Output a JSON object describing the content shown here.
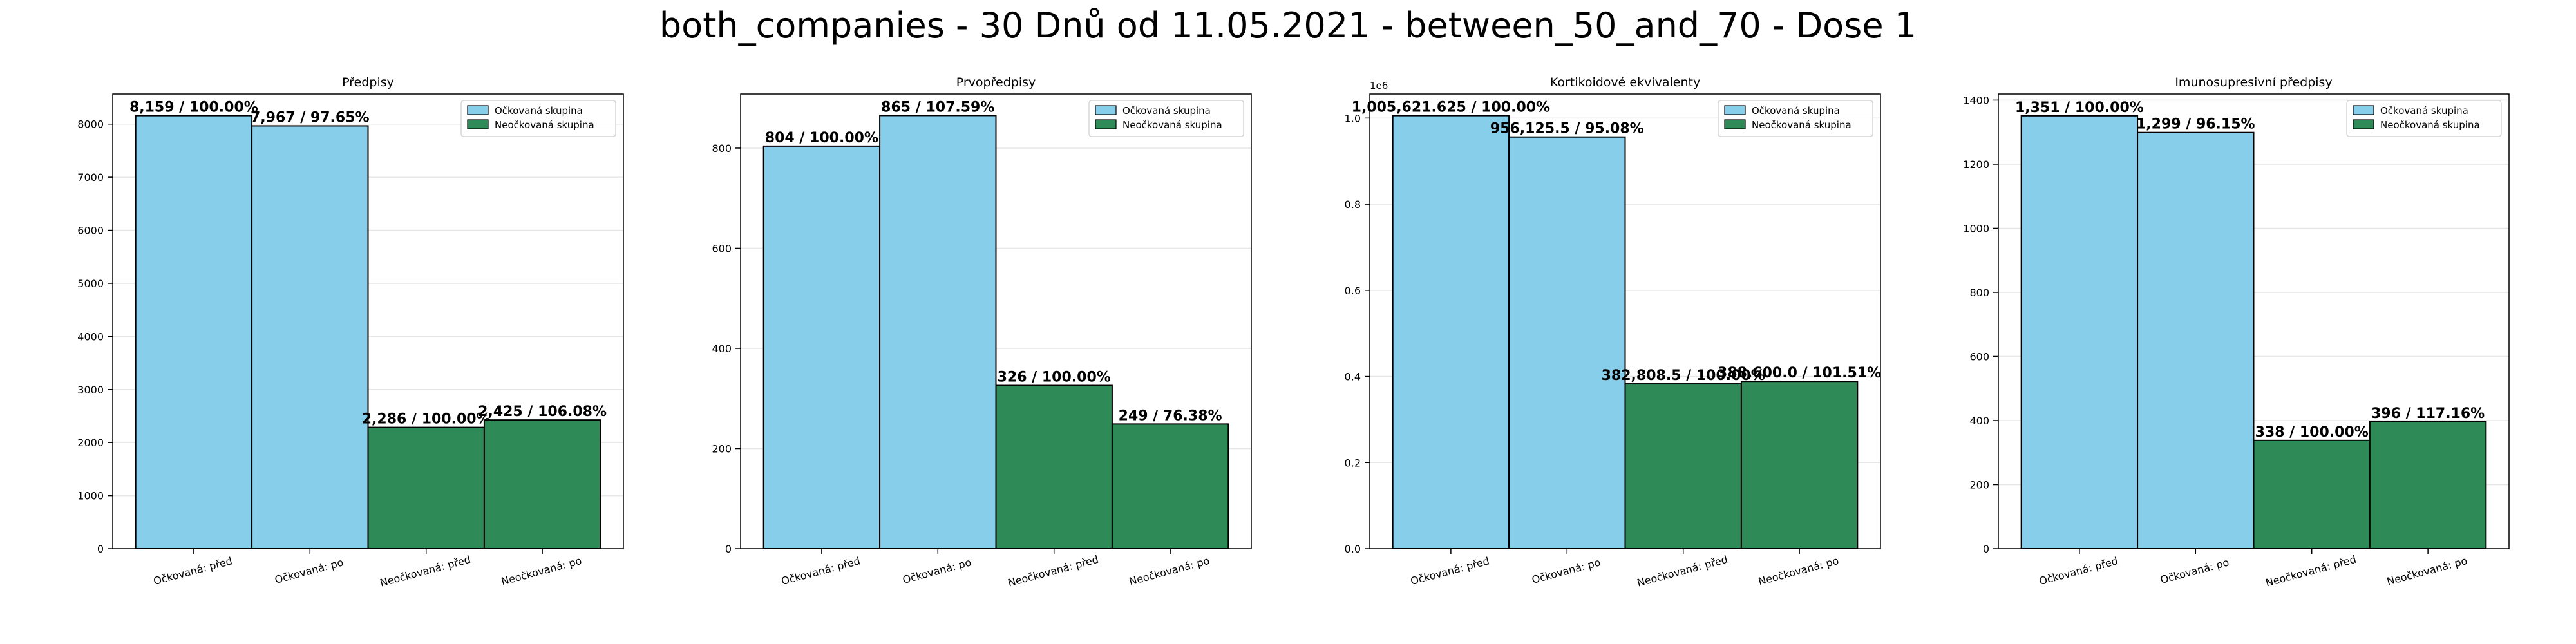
{
  "figure": {
    "suptitle": "both_companies - 30 Dnů od 11.05.2021 - between_50_and_70 - Dose 1"
  },
  "colors": {
    "vaccinated": "#87CEEB",
    "unvaccinated": "#2E8B57",
    "edge": "#000000",
    "grid": "#e6e6e6"
  },
  "chart_data": [
    {
      "type": "bar",
      "title": "Předpisy",
      "categories": [
        "Očkovaná: před",
        "Očkovaná: po",
        "Neočkovaná: před",
        "Neočkovaná: po"
      ],
      "values": [
        8159,
        7967,
        2286,
        2425
      ],
      "bar_labels": [
        "8,159 / 100.00%",
        "7,967 / 97.65%",
        "2,286 / 100.00%",
        "2,425 / 106.08%"
      ],
      "bar_groups": [
        "vaccinated",
        "vaccinated",
        "unvaccinated",
        "unvaccinated"
      ],
      "ylim": [
        0,
        8567
      ],
      "yticks": [
        0,
        1000,
        2000,
        3000,
        4000,
        5000,
        6000,
        7000,
        8000
      ],
      "ytick_labels": [
        "0",
        "1000",
        "2000",
        "3000",
        "4000",
        "5000",
        "6000",
        "7000",
        "8000"
      ],
      "offset_text": "",
      "grid": true,
      "legend": [
        "Očkovaná skupina",
        "Neočkovaná skupina"
      ],
      "legend_position": "top-right"
    },
    {
      "type": "bar",
      "title": "Prvopředpisy",
      "categories": [
        "Očkovaná: před",
        "Očkovaná: po",
        "Neočkovaná: před",
        "Neočkovaná: po"
      ],
      "values": [
        804,
        865,
        326,
        249
      ],
      "bar_labels": [
        "804 / 100.00%",
        "865 / 107.59%",
        "326 / 100.00%",
        "249 / 76.38%"
      ],
      "bar_groups": [
        "vaccinated",
        "vaccinated",
        "unvaccinated",
        "unvaccinated"
      ],
      "ylim": [
        0,
        908
      ],
      "yticks": [
        0,
        200,
        400,
        600,
        800
      ],
      "ytick_labels": [
        "0",
        "200",
        "400",
        "600",
        "800"
      ],
      "offset_text": "",
      "grid": true,
      "legend": [
        "Očkovaná skupina",
        "Neočkovaná skupina"
      ],
      "legend_position": "top-right"
    },
    {
      "type": "bar",
      "title": "Kortikoidové ekvivalenty",
      "categories": [
        "Očkovaná: před",
        "Očkovaná: po",
        "Neočkovaná: před",
        "Neočkovaná: po"
      ],
      "values": [
        1005621.625,
        956125.5,
        382808.5,
        388600.0
      ],
      "bar_labels": [
        "1,005,621.625 / 100.00%",
        "956,125.5 / 95.08%",
        "382,808.5 / 100.00%",
        "388,600.0 / 101.51%"
      ],
      "bar_groups": [
        "vaccinated",
        "vaccinated",
        "unvaccinated",
        "unvaccinated"
      ],
      "ylim": [
        0,
        1055903
      ],
      "yticks": [
        0,
        200000,
        400000,
        600000,
        800000,
        1000000
      ],
      "ytick_labels": [
        "0.0",
        "0.2",
        "0.4",
        "0.6",
        "0.8",
        "1.0"
      ],
      "offset_text": "1e6",
      "grid": true,
      "legend": [
        "Očkovaná skupina",
        "Neočkovaná skupina"
      ],
      "legend_position": "top-right"
    },
    {
      "type": "bar",
      "title": "Imunosupresivní předpisy",
      "categories": [
        "Očkovaná: před",
        "Očkovaná: po",
        "Neočkovaná: před",
        "Neočkovaná: po"
      ],
      "values": [
        1351,
        1299,
        338,
        396
      ],
      "bar_labels": [
        "1,351 / 100.00%",
        "1,299 / 96.15%",
        "338 / 100.00%",
        "396 / 117.16%"
      ],
      "bar_groups": [
        "vaccinated",
        "vaccinated",
        "unvaccinated",
        "unvaccinated"
      ],
      "ylim": [
        0,
        1419
      ],
      "yticks": [
        0,
        200,
        400,
        600,
        800,
        1000,
        1200,
        1400
      ],
      "ytick_labels": [
        "0",
        "200",
        "400",
        "600",
        "800",
        "1000",
        "1200",
        "1400"
      ],
      "offset_text": "",
      "grid": true,
      "legend": [
        "Očkovaná skupina",
        "Neočkovaná skupina"
      ],
      "legend_position": "top-right"
    }
  ]
}
